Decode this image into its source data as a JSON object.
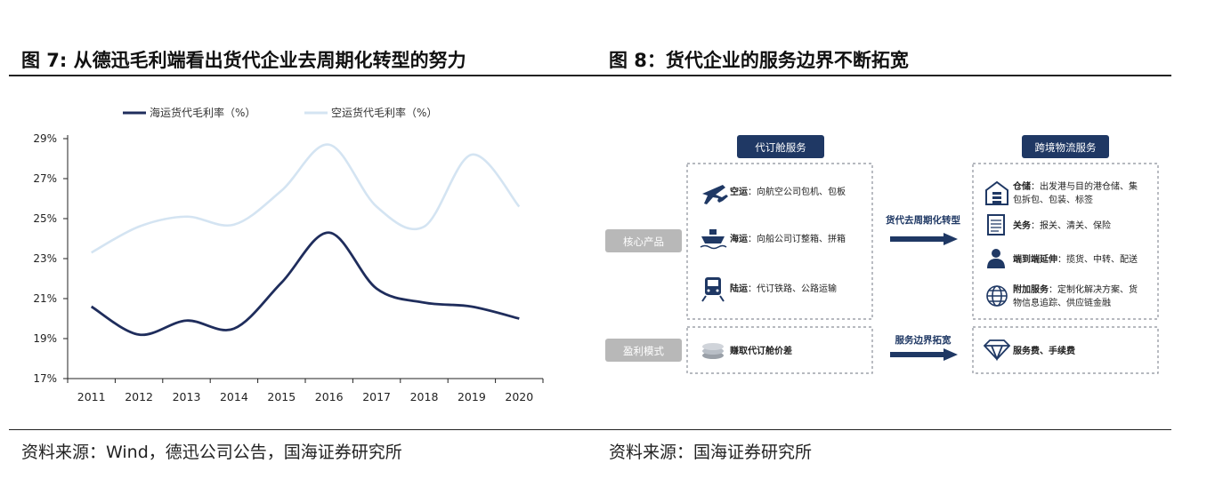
{
  "figure7": {
    "title": "图 7: 从德迅毛利端看出货代企业去周期化转型的努力",
    "source": "资料来源：Wind，德迅公司公告，国海证券研究所"
  },
  "figure8": {
    "title": "图 8：货代企业的服务边界不断拓宽",
    "source": "资料来源：国海证券研究所",
    "headers": {
      "left": "代订舱服务",
      "right": "跨境物流服务"
    },
    "row_labels": {
      "core": "核心产品",
      "profit": "盈利模式"
    },
    "arrows": {
      "top": "货代去周期化转型",
      "bottom": "服务边界拓宽"
    },
    "left_items": [
      {
        "icon": "airplane-icon",
        "bold": "空运",
        "text": "：向航空公司包机、包板"
      },
      {
        "icon": "ship-icon",
        "bold": "海运",
        "text": "：向船公司订整箱、拼箱"
      },
      {
        "icon": "train-icon",
        "bold": "陆运",
        "text": "：代订铁路、公路运输"
      }
    ],
    "right_items": [
      {
        "icon": "warehouse-icon",
        "bold": "仓储",
        "line1": "：出发港与目的港仓储、集",
        "line2": "包拆包、包装、标签"
      },
      {
        "icon": "document-icon",
        "bold": "关务",
        "line1": "：报关、清关、保险",
        "line2": ""
      },
      {
        "icon": "person-icon",
        "bold": "端到端延伸",
        "line1": "：揽货、中转、配送",
        "line2": ""
      },
      {
        "icon": "globe-icon",
        "bold": "附加服务",
        "line1": "：定制化解决方案、货",
        "line2": "物信息追踪、供应链金融"
      }
    ],
    "profit_left": {
      "icon": "coins-icon",
      "text": "赚取代订舱价差"
    },
    "profit_right": {
      "icon": "diamond-icon",
      "text": "服务费、手续费"
    },
    "colors": {
      "header": "#1f3864",
      "label_box": "#b8b8b8",
      "arrow": "#1f3864"
    }
  },
  "chart_data": {
    "type": "line",
    "title": "",
    "xlabel": "",
    "ylabel": "",
    "x": [
      "2011",
      "2012",
      "2013",
      "2014",
      "2015",
      "2016",
      "2017",
      "2018",
      "2019",
      "2020"
    ],
    "ylim": [
      17,
      29
    ],
    "yticks": [
      17,
      19,
      21,
      23,
      25,
      27,
      29
    ],
    "ytick_labels": [
      "17%",
      "19%",
      "21%",
      "23%",
      "25%",
      "27%",
      "29%"
    ],
    "legend_position": "top",
    "grid": false,
    "series": [
      {
        "name": "海运货代毛利率（%）",
        "color": "#1f2d5c",
        "values": [
          20.6,
          19.2,
          19.9,
          19.5,
          21.8,
          24.3,
          21.5,
          20.8,
          20.6,
          20.0
        ]
      },
      {
        "name": "空运货代毛利率（%）",
        "color": "#d4e4f2",
        "values": [
          23.3,
          24.6,
          25.1,
          24.7,
          26.4,
          28.7,
          25.6,
          24.6,
          28.2,
          25.6
        ]
      }
    ]
  }
}
